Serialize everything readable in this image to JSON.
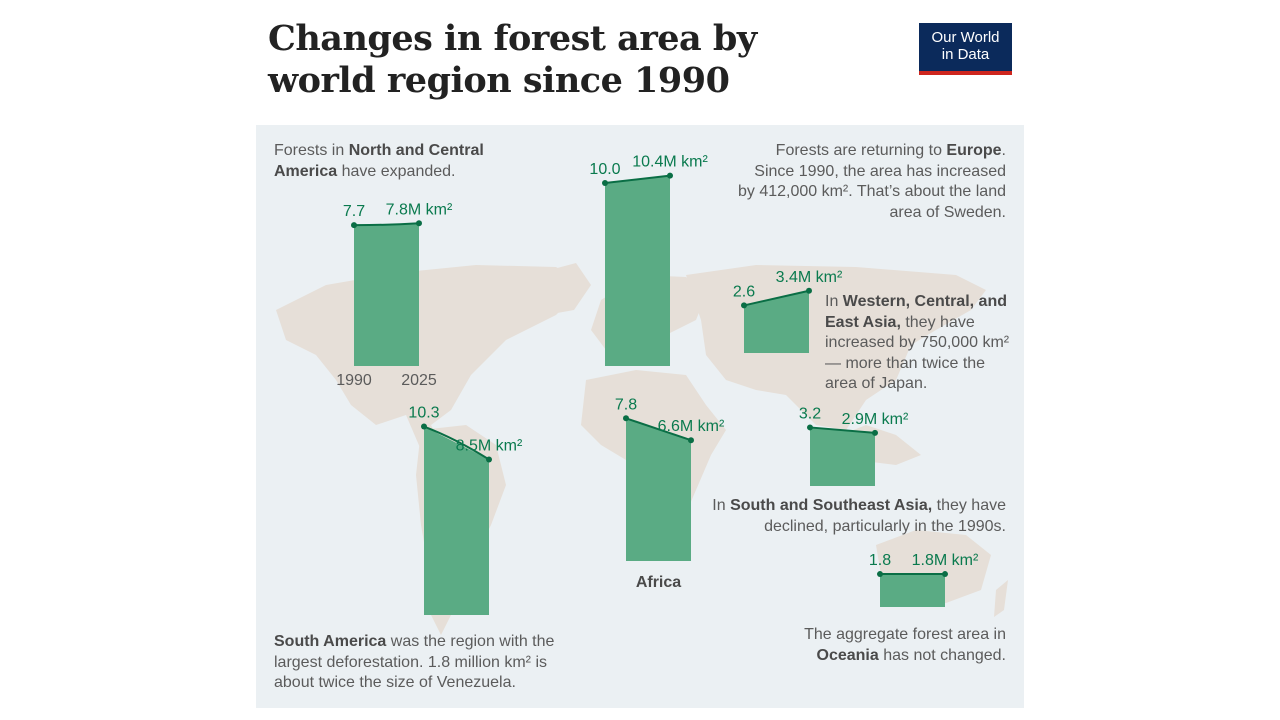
{
  "page": {
    "title": "Changes in forest area by world region since 1990",
    "logo_line1": "Our World",
    "logo_line2": "in Data"
  },
  "colors": {
    "bar": "#5aab84",
    "line": "#0a6e45",
    "label": "#0a7a4e",
    "map": "#e6dfd8",
    "panel": "#ebf0f3"
  },
  "chart_data": {
    "type": "bar",
    "title": "Changes in forest area by world region since 1990",
    "unit": "M km²",
    "x": [
      "1990",
      "2025"
    ],
    "series": [
      {
        "name": "North and Central America",
        "values": [
          7.7,
          7.8
        ],
        "start_label": "7.7",
        "end_label": "7.8M km²"
      },
      {
        "name": "Europe",
        "values": [
          10.0,
          10.4
        ],
        "start_label": "10.0",
        "end_label": "10.4M km²"
      },
      {
        "name": "Western, Central, and East Asia",
        "values": [
          2.6,
          3.4
        ],
        "start_label": "2.6",
        "end_label": "3.4M km²"
      },
      {
        "name": "South America",
        "values": [
          10.3,
          8.5
        ],
        "start_label": "10.3",
        "end_label": "8.5M km²"
      },
      {
        "name": "Africa",
        "values": [
          7.8,
          6.6
        ],
        "start_label": "7.8",
        "end_label": "6.6M km²",
        "region_label": "Africa"
      },
      {
        "name": "South and Southeast Asia",
        "values": [
          3.2,
          2.9
        ],
        "start_label": "3.2",
        "end_label": "2.9M km²"
      },
      {
        "name": "Oceania",
        "values": [
          1.8,
          1.8
        ],
        "start_label": "1.8",
        "end_label": "1.8M km²"
      }
    ],
    "annotations": {
      "north_america": {
        "pre": "Forests in ",
        "bold": "North and Central America",
        "post": " have expanded."
      },
      "europe": {
        "pre": "Forests are returning to ",
        "bold": "Europe",
        "post": ". Since 1990, the area has increased by 412,000 km². That’s about the land area of Sweden."
      },
      "west_asia": {
        "pre": "In ",
        "bold": "Western, Central, and East Asia,",
        "post": " they have increased by 750,000 km² — more than twice the area of Japan."
      },
      "south_asia": {
        "pre": "In ",
        "bold": "South and Southeast Asia,",
        "post": " they have declined, particularly in the 1990s."
      },
      "south_america": {
        "pre": "",
        "bold": "South America",
        "post": " was the region with the largest deforestation. 1.8 million km² is about twice the size of Venezuela."
      },
      "oceania": {
        "pre": "The aggregate forest area in ",
        "bold": "Oceania",
        "post": " has not changed."
      }
    }
  }
}
